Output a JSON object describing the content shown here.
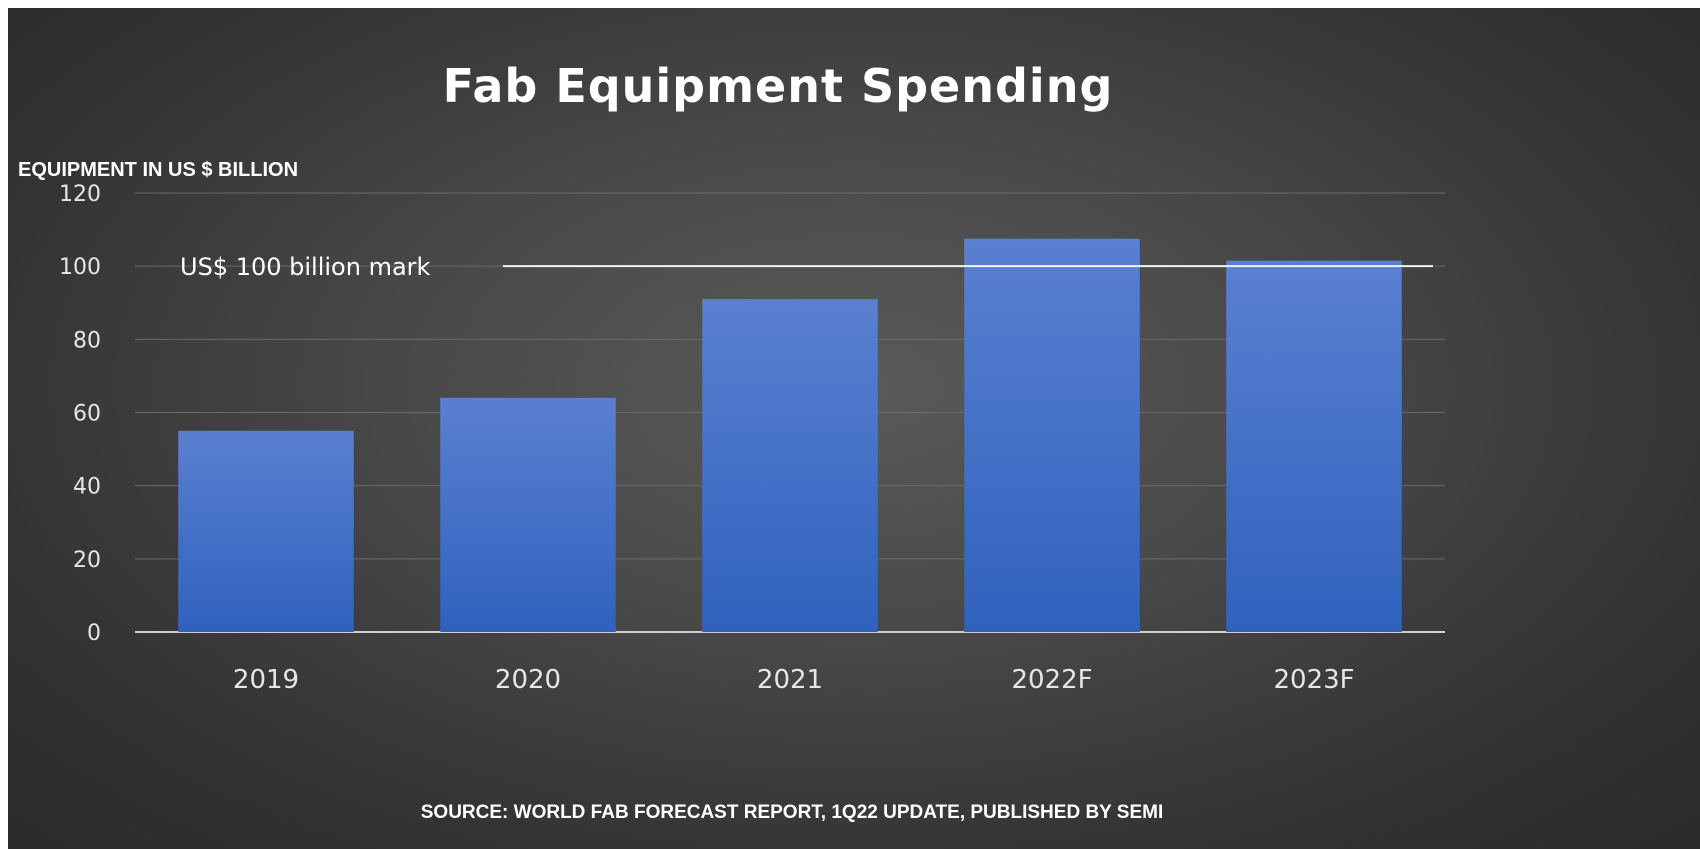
{
  "chart_data": {
    "type": "bar",
    "title": "Fab Equipment Spending",
    "ylabel": "EQUIPMENT IN US $ BILLION",
    "xlabel": "",
    "categories": [
      "2019",
      "2020",
      "2021",
      "2022F",
      "2023F"
    ],
    "values": [
      55,
      64,
      91,
      107.5,
      101.5
    ],
    "ylim": [
      0,
      120
    ],
    "yticks": [
      "0",
      "20",
      "40",
      "60",
      "80",
      "100",
      "120"
    ],
    "grid": true,
    "legend": "none",
    "annotation": {
      "text": "US$ 100 billion mark",
      "value": 100
    },
    "source": "SOURCE: WORLD FAB FORECAST REPORT, 1Q22 UPDATE, PUBLISHED BY SEMI",
    "colors": {
      "bar_top": "#5a80d0",
      "bar_bottom": "#2f62be",
      "background": "#3f3f3f"
    }
  }
}
